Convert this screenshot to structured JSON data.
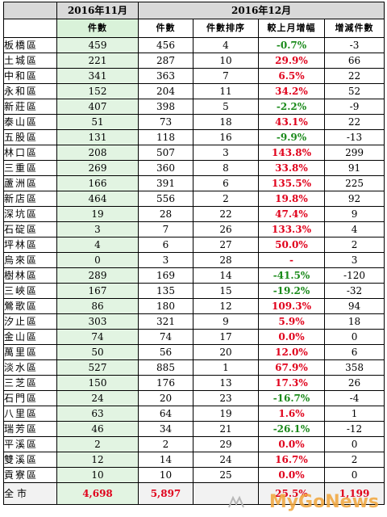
{
  "header": {
    "nov_title": "2016年11月",
    "dec_title": "2016年12月",
    "nov_count_label": "件數",
    "dec_count_label": "件數",
    "rank_label": "件數排序",
    "pct_label": "較上月增幅",
    "diff_label": "增減件數"
  },
  "rows": [
    {
      "district": "板橋區",
      "nov": "459",
      "dec": "456",
      "rank": "4",
      "pct": "-0.7%",
      "dir": "down",
      "diff": "-3"
    },
    {
      "district": "土城區",
      "nov": "221",
      "dec": "287",
      "rank": "10",
      "pct": "29.9%",
      "dir": "up",
      "diff": "66"
    },
    {
      "district": "中和區",
      "nov": "341",
      "dec": "363",
      "rank": "7",
      "pct": "6.5%",
      "dir": "up",
      "diff": "22"
    },
    {
      "district": "永和區",
      "nov": "152",
      "dec": "204",
      "rank": "11",
      "pct": "34.2%",
      "dir": "up",
      "diff": "52"
    },
    {
      "district": "新莊區",
      "nov": "407",
      "dec": "398",
      "rank": "5",
      "pct": "-2.2%",
      "dir": "down",
      "diff": "-9"
    },
    {
      "district": "泰山區",
      "nov": "51",
      "dec": "73",
      "rank": "18",
      "pct": "43.1%",
      "dir": "up",
      "diff": "22"
    },
    {
      "district": "五股區",
      "nov": "131",
      "dec": "118",
      "rank": "16",
      "pct": "-9.9%",
      "dir": "down",
      "diff": "-13"
    },
    {
      "district": "林口區",
      "nov": "208",
      "dec": "507",
      "rank": "3",
      "pct": "143.8%",
      "dir": "up",
      "diff": "299"
    },
    {
      "district": "三重區",
      "nov": "269",
      "dec": "360",
      "rank": "8",
      "pct": "33.8%",
      "dir": "up",
      "diff": "91"
    },
    {
      "district": "蘆洲區",
      "nov": "166",
      "dec": "391",
      "rank": "6",
      "pct": "135.5%",
      "dir": "up",
      "diff": "225"
    },
    {
      "district": "新店區",
      "nov": "464",
      "dec": "556",
      "rank": "2",
      "pct": "19.8%",
      "dir": "up",
      "diff": "92"
    },
    {
      "district": "深坑區",
      "nov": "19",
      "dec": "28",
      "rank": "22",
      "pct": "47.4%",
      "dir": "up",
      "diff": "9"
    },
    {
      "district": "石碇區",
      "nov": "3",
      "dec": "7",
      "rank": "26",
      "pct": "133.3%",
      "dir": "up",
      "diff": "4"
    },
    {
      "district": "坪林區",
      "nov": "4",
      "dec": "6",
      "rank": "27",
      "pct": "50.0%",
      "dir": "up",
      "diff": "2"
    },
    {
      "district": "烏來區",
      "nov": "0",
      "dec": "3",
      "rank": "28",
      "pct": "-",
      "dir": "up",
      "diff": "3"
    },
    {
      "district": "樹林區",
      "nov": "289",
      "dec": "169",
      "rank": "14",
      "pct": "-41.5%",
      "dir": "down",
      "diff": "-120"
    },
    {
      "district": "三峽區",
      "nov": "167",
      "dec": "135",
      "rank": "15",
      "pct": "-19.2%",
      "dir": "down",
      "diff": "-32"
    },
    {
      "district": "鶯歌區",
      "nov": "86",
      "dec": "180",
      "rank": "12",
      "pct": "109.3%",
      "dir": "up",
      "diff": "94"
    },
    {
      "district": "汐止區",
      "nov": "303",
      "dec": "321",
      "rank": "9",
      "pct": "5.9%",
      "dir": "up",
      "diff": "18"
    },
    {
      "district": "金山區",
      "nov": "74",
      "dec": "74",
      "rank": "17",
      "pct": "0.0%",
      "dir": "up",
      "diff": "0"
    },
    {
      "district": "萬里區",
      "nov": "50",
      "dec": "56",
      "rank": "20",
      "pct": "12.0%",
      "dir": "up",
      "diff": "6"
    },
    {
      "district": "淡水區",
      "nov": "527",
      "dec": "885",
      "rank": "1",
      "pct": "67.9%",
      "dir": "up",
      "diff": "358"
    },
    {
      "district": "三芝區",
      "nov": "150",
      "dec": "176",
      "rank": "13",
      "pct": "17.3%",
      "dir": "up",
      "diff": "26"
    },
    {
      "district": "石門區",
      "nov": "24",
      "dec": "20",
      "rank": "23",
      "pct": "-16.7%",
      "dir": "down",
      "diff": "-4"
    },
    {
      "district": "八里區",
      "nov": "63",
      "dec": "64",
      "rank": "19",
      "pct": "1.6%",
      "dir": "up",
      "diff": "1"
    },
    {
      "district": "瑞芳區",
      "nov": "46",
      "dec": "34",
      "rank": "21",
      "pct": "-26.1%",
      "dir": "down",
      "diff": "-12"
    },
    {
      "district": "平溪區",
      "nov": "2",
      "dec": "2",
      "rank": "29",
      "pct": "0.0%",
      "dir": "up",
      "diff": "0"
    },
    {
      "district": "雙溪區",
      "nov": "12",
      "dec": "14",
      "rank": "24",
      "pct": "16.7%",
      "dir": "up",
      "diff": "2"
    },
    {
      "district": "貢寮區",
      "nov": "10",
      "dec": "10",
      "rank": "25",
      "pct": "0.0%",
      "dir": "up",
      "diff": "0"
    }
  ],
  "total": {
    "district": "全市",
    "nov": "4,698",
    "dec": "5,897",
    "rank": "",
    "pct": "25.5%",
    "diff": "1,199"
  },
  "watermark": {
    "text": "MyGoNews",
    "color": "#f1a53a"
  },
  "colors": {
    "increase": "#e0001b",
    "decrease": "#1a8a1a",
    "nov_fill": "#e2f4e2",
    "header_fill": "#d9d9d9"
  }
}
